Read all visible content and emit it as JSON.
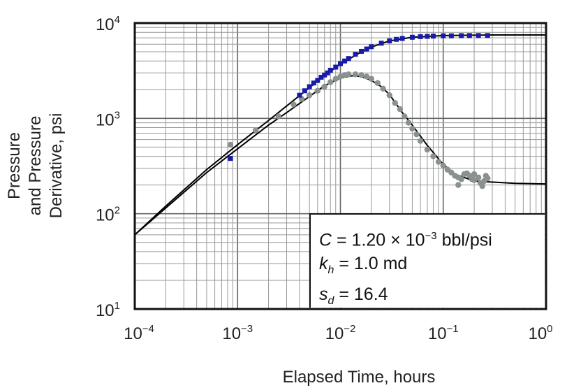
{
  "chart_data": {
    "type": "scatter",
    "xlabel": "Elapsed Time, hours",
    "ylabel_lines": [
      "Pressure",
      "and Pressure",
      "Derivative, psi"
    ],
    "xscale": "log",
    "yscale": "log",
    "xlim": [
      0.0001,
      1
    ],
    "ylim": [
      10,
      10000
    ],
    "grid": true,
    "x_ticks": [
      {
        "base": "10",
        "exp": "−4",
        "value": 0.0001
      },
      {
        "base": "10",
        "exp": "−3",
        "value": 0.001
      },
      {
        "base": "10",
        "exp": "−2",
        "value": 0.01
      },
      {
        "base": "10",
        "exp": "−1",
        "value": 0.1
      },
      {
        "base": "10",
        "exp": "0",
        "value": 1
      }
    ],
    "y_ticks": [
      {
        "base": "10",
        "exp": "1",
        "value": 10
      },
      {
        "base": "10",
        "exp": "2",
        "value": 100
      },
      {
        "base": "10",
        "exp": "3",
        "value": 1000
      },
      {
        "base": "10",
        "exp": "4",
        "value": 10000
      }
    ],
    "series": [
      {
        "kind": "pressure-data",
        "marker": "square",
        "color": "#1a1aa8",
        "points": [
          [
            0.00085,
            380
          ],
          [
            0.004,
            1750
          ],
          [
            0.0045,
            1950
          ],
          [
            0.005,
            2150
          ],
          [
            0.0055,
            2350
          ],
          [
            0.006,
            2500
          ],
          [
            0.0065,
            2700
          ],
          [
            0.007,
            2850
          ],
          [
            0.0075,
            3000
          ],
          [
            0.008,
            3200
          ],
          [
            0.009,
            3450
          ],
          [
            0.01,
            3750
          ],
          [
            0.011,
            4000
          ],
          [
            0.012,
            4250
          ],
          [
            0.014,
            4700
          ],
          [
            0.016,
            5050
          ],
          [
            0.018,
            5350
          ],
          [
            0.02,
            5650
          ],
          [
            0.025,
            6150
          ],
          [
            0.03,
            6500
          ],
          [
            0.035,
            6750
          ],
          [
            0.04,
            6900
          ],
          [
            0.05,
            7100
          ],
          [
            0.06,
            7200
          ],
          [
            0.07,
            7250
          ],
          [
            0.08,
            7300
          ],
          [
            0.1,
            7350
          ],
          [
            0.12,
            7350
          ],
          [
            0.15,
            7380
          ],
          [
            0.18,
            7400
          ],
          [
            0.22,
            7400
          ],
          [
            0.27,
            7400
          ]
        ]
      },
      {
        "kind": "derivative-data",
        "marker": "circle",
        "color": "#8a918e",
        "points": [
          [
            0.00085,
            530
          ],
          [
            0.0015,
            750
          ],
          [
            0.0025,
            1050
          ],
          [
            0.0035,
            1400
          ],
          [
            0.0042,
            1600
          ],
          [
            0.005,
            1750
          ],
          [
            0.006,
            1950
          ],
          [
            0.007,
            2150
          ],
          [
            0.008,
            2400
          ],
          [
            0.009,
            2600
          ],
          [
            0.01,
            2750
          ],
          [
            0.011,
            2850
          ],
          [
            0.012,
            2900
          ],
          [
            0.014,
            2900
          ],
          [
            0.016,
            2850
          ],
          [
            0.018,
            2750
          ],
          [
            0.02,
            2600
          ],
          [
            0.023,
            2350
          ],
          [
            0.026,
            2050
          ],
          [
            0.03,
            1750
          ],
          [
            0.034,
            1450
          ],
          [
            0.038,
            1250
          ],
          [
            0.042,
            1050
          ],
          [
            0.046,
            900
          ],
          [
            0.05,
            780
          ],
          [
            0.055,
            680
          ],
          [
            0.06,
            580
          ],
          [
            0.07,
            470
          ],
          [
            0.08,
            400
          ],
          [
            0.09,
            350
          ],
          [
            0.1,
            320
          ],
          [
            0.11,
            290
          ],
          [
            0.12,
            270
          ],
          [
            0.13,
            250
          ],
          [
            0.14,
            240
          ],
          [
            0.14,
            200
          ],
          [
            0.15,
            230
          ],
          [
            0.16,
            260
          ],
          [
            0.17,
            265
          ],
          [
            0.18,
            250
          ],
          [
            0.19,
            230
          ],
          [
            0.2,
            260
          ],
          [
            0.2,
            225
          ],
          [
            0.22,
            240
          ],
          [
            0.23,
            210
          ],
          [
            0.24,
            195
          ],
          [
            0.25,
            220
          ],
          [
            0.26,
            250
          ],
          [
            0.27,
            235
          ]
        ]
      },
      {
        "kind": "pressure-model",
        "marker": "line",
        "color": "#000000",
        "points": [
          [
            0.0001,
            60
          ],
          [
            0.0002,
            120
          ],
          [
            0.0005,
            290
          ],
          [
            0.001,
            530
          ],
          [
            0.002,
            950
          ],
          [
            0.003,
            1350
          ],
          [
            0.005,
            2100
          ],
          [
            0.007,
            2800
          ],
          [
            0.01,
            3700
          ],
          [
            0.015,
            4800
          ],
          [
            0.02,
            5600
          ],
          [
            0.03,
            6500
          ],
          [
            0.05,
            7100
          ],
          [
            0.1,
            7400
          ],
          [
            0.3,
            7500
          ],
          [
            1,
            7500
          ]
        ]
      },
      {
        "kind": "derivative-model",
        "marker": "line",
        "color": "#000000",
        "points": [
          [
            0.0001,
            60
          ],
          [
            0.0005,
            270
          ],
          [
            0.001,
            480
          ],
          [
            0.002,
            850
          ],
          [
            0.003,
            1150
          ],
          [
            0.005,
            1700
          ],
          [
            0.007,
            2200
          ],
          [
            0.01,
            2650
          ],
          [
            0.013,
            2800
          ],
          [
            0.016,
            2750
          ],
          [
            0.02,
            2500
          ],
          [
            0.025,
            2150
          ],
          [
            0.03,
            1780
          ],
          [
            0.04,
            1150
          ],
          [
            0.05,
            850
          ],
          [
            0.07,
            520
          ],
          [
            0.1,
            330
          ],
          [
            0.13,
            260
          ],
          [
            0.2,
            220
          ],
          [
            0.5,
            208
          ],
          [
            1,
            205
          ]
        ]
      }
    ],
    "annotation": {
      "c_symbol": "C",
      "c_value": " = 1.20 × 10",
      "c_exp": "−3",
      "c_unit": " bbl/psi",
      "k_symbol": "k",
      "k_sub": "h",
      "k_value": " = 1.0 md",
      "s_symbol": "s",
      "s_sub": "d",
      "s_value": " = 16.4"
    }
  }
}
